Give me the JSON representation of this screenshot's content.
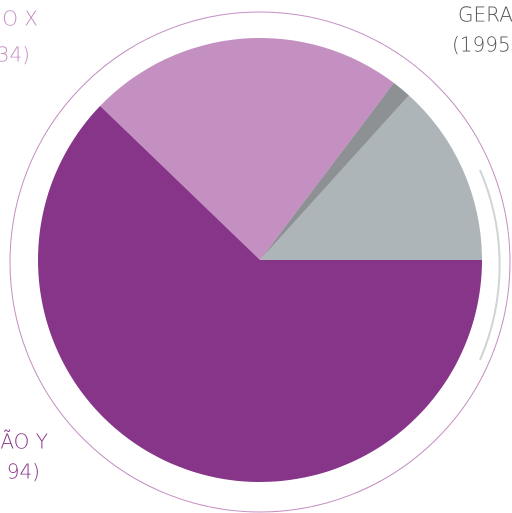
{
  "chart_data": {
    "type": "pie",
    "categories": [
      "GERA",
      null,
      "O X",
      "ÃO Y"
    ],
    "category_sublabels": [
      "(1995",
      null,
      "34)",
      "94)"
    ],
    "values": [
      13.3,
      1.4,
      23.1,
      62.2
    ],
    "colors": [
      "#adb5b9",
      "#8e9193",
      "#c48fc1",
      "#873589"
    ],
    "label_colors": [
      "#555555",
      null,
      "#c48fc1",
      "#873589"
    ]
  }
}
